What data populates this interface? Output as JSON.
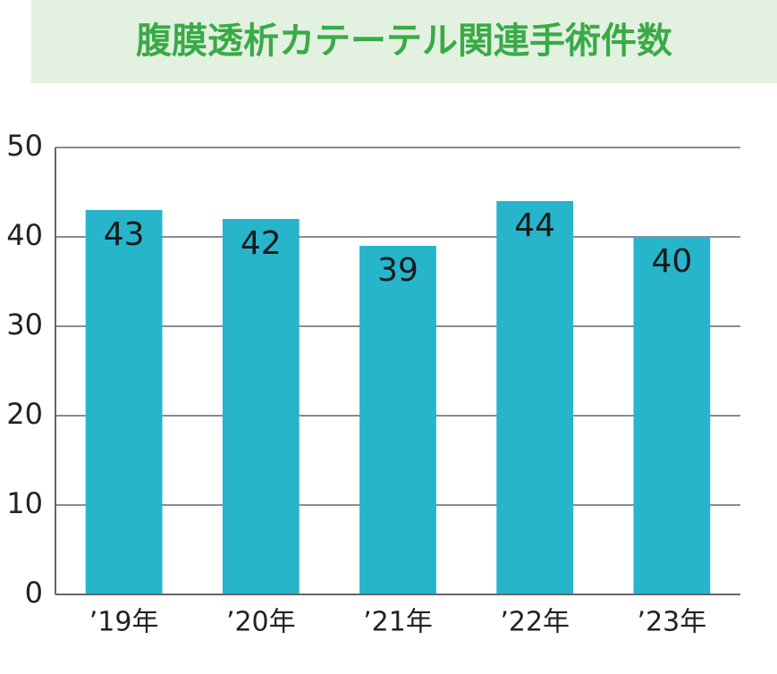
{
  "chart_data": {
    "type": "bar",
    "title": "腹膜透析カテーテル関連手術件数",
    "categories": [
      "’19年",
      "’20年",
      "’21年",
      "’22年",
      "’23年"
    ],
    "values": [
      43,
      42,
      39,
      44,
      40
    ],
    "color": "#26b5cb",
    "ylim": [
      0,
      50
    ],
    "yticks": [
      0,
      10,
      20,
      30,
      40,
      50
    ],
    "grid": true
  }
}
